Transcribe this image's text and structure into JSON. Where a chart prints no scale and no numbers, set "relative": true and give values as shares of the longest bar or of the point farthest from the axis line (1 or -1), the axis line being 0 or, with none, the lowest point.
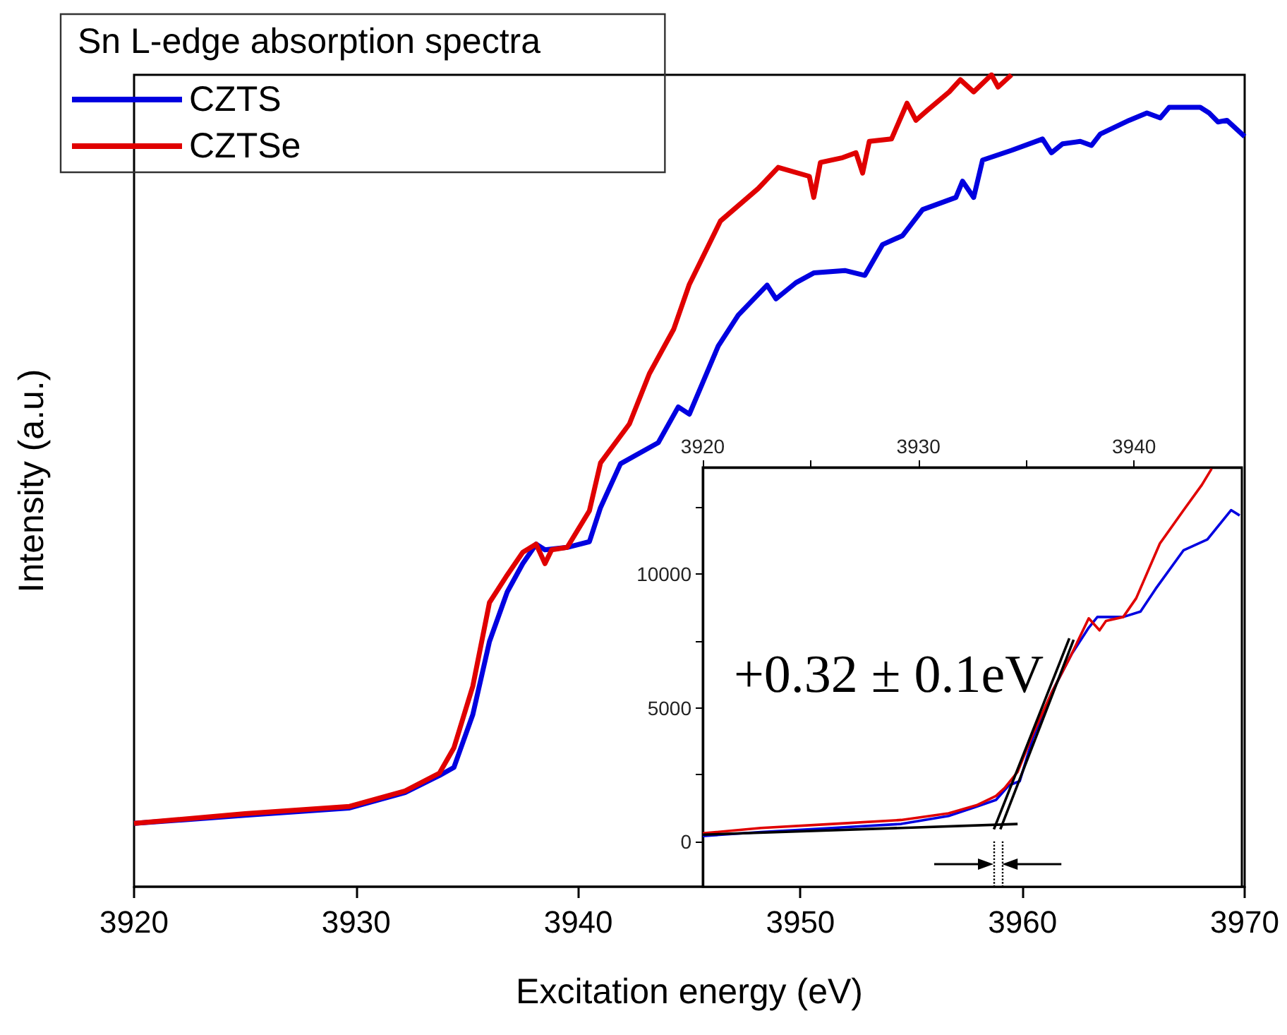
{
  "chart_data": [
    {
      "type": "line",
      "relative": true,
      "xlabel": "Excitation energy (eV)",
      "ylabel": "Intensity (a.u.)",
      "legend_title": "Sn L-edge absorption spectra",
      "legend": "top left",
      "grid": false,
      "marker": "none",
      "xlim": [
        3920,
        3970
      ],
      "xticks": [
        3920,
        3930,
        3940,
        3950,
        3960,
        3970
      ],
      "series": [
        {
          "name": "CZTS",
          "color": "#0000e0",
          "x": [
            3920,
            3925,
            3929.7,
            3932.2,
            3933.75,
            3934.4,
            3935.25,
            3936,
            3936.8,
            3937.5,
            3938.1,
            3938.5,
            3939.5,
            3940.5,
            3941,
            3941.9,
            3943.6,
            3944.5,
            3945,
            3946.3,
            3947.2,
            3948.5,
            3948.9,
            3949.8,
            3950.6,
            3952,
            3952.9,
            3953.7,
            3954.6,
            3955.5,
            3957,
            3957.3,
            3957.8,
            3958.2,
            3959.5,
            3960.9,
            3961.3,
            3961.8,
            3962.6,
            3963.1,
            3963.5,
            3964.8,
            3965.6,
            3966.2,
            3966.6,
            3968,
            3968.4,
            3968.8,
            3969.2,
            3970
          ],
          "values": [
            0.078,
            0.088,
            0.097,
            0.116,
            0.137,
            0.147,
            0.212,
            0.302,
            0.363,
            0.398,
            0.422,
            0.415,
            0.418,
            0.425,
            0.467,
            0.521,
            0.547,
            0.591,
            0.582,
            0.666,
            0.704,
            0.741,
            0.724,
            0.744,
            0.756,
            0.759,
            0.753,
            0.791,
            0.802,
            0.834,
            0.849,
            0.869,
            0.849,
            0.895,
            0.907,
            0.921,
            0.904,
            0.915,
            0.918,
            0.913,
            0.927,
            0.944,
            0.953,
            0.947,
            0.96,
            0.96,
            0.953,
            0.942,
            0.944,
            0.924
          ]
        },
        {
          "name": "CZTSe",
          "color": "#e00000",
          "x": [
            3920,
            3925,
            3929.7,
            3932.2,
            3933.75,
            3934.4,
            3935.25,
            3936,
            3936.8,
            3937.5,
            3938.1,
            3938.5,
            3938.8,
            3939.5,
            3940.5,
            3941,
            3942.3,
            3943.2,
            3944.3,
            3945,
            3946.4,
            3948.1,
            3949,
            3950.4,
            3950.6,
            3950.9,
            3951.9,
            3952.5,
            3952.8,
            3953.1,
            3954.1,
            3954.8,
            3955.2,
            3955.7,
            3956.7,
            3957.2,
            3957.8,
            3958.6,
            3958.9,
            3959.5
          ],
          "values": [
            0.078,
            0.09,
            0.099,
            0.118,
            0.14,
            0.171,
            0.247,
            0.35,
            0.384,
            0.412,
            0.422,
            0.398,
            0.415,
            0.418,
            0.463,
            0.522,
            0.57,
            0.632,
            0.687,
            0.742,
            0.82,
            0.86,
            0.886,
            0.875,
            0.849,
            0.892,
            0.898,
            0.904,
            0.879,
            0.918,
            0.921,
            0.965,
            0.944,
            0.956,
            0.979,
            0.994,
            0.979,
            1.0,
            0.985,
            1.0
          ]
        }
      ]
    },
    {
      "type": "line",
      "marker": "none",
      "grid": false,
      "xlim": [
        3920,
        3945
      ],
      "xticks": [
        3920,
        {
          "value": 3925,
          "label": null
        },
        3930,
        {
          "value": 3935,
          "label": null
        },
        3940
      ],
      "ylim": [
        -1700,
        14000
      ],
      "yticks": [
        0,
        {
          "value": 2500,
          "label": null
        },
        5000,
        {
          "value": 7500,
          "label": null
        },
        10000,
        {
          "value": 12500,
          "label": null
        }
      ],
      "annotations": [
        "+0.32 ± 0.1eV"
      ],
      "ref_lines": [
        {
          "axis": "x",
          "value": 3933.5,
          "line_style": "dotted",
          "color": "#000000"
        },
        {
          "axis": "x",
          "value": 3933.9,
          "line_style": "dotted",
          "color": "#000000"
        }
      ],
      "series": [
        {
          "color": "#0000e0",
          "x": [
            3920,
            3922.7,
            3926,
            3929.2,
            3931.4,
            3932.7,
            3933.6,
            3934.2,
            3934.7,
            3935.3,
            3936.2,
            3937.1,
            3937.9,
            3938.3,
            3939.5,
            3940.3,
            3941,
            3942.3,
            3943.4,
            3944.5,
            3944.9
          ],
          "values": [
            200,
            350,
            500,
            650,
            950,
            1300,
            1550,
            2100,
            2250,
            3850,
            5600,
            7000,
            8000,
            8400,
            8400,
            8600,
            9450,
            10900,
            11300,
            12400,
            12200
          ]
        },
        {
          "color": "#e00000",
          "x": [
            3920,
            3922.7,
            3926,
            3929.2,
            3931.4,
            3932.7,
            3933.6,
            3934,
            3934.6,
            3935.3,
            3936.2,
            3937.1,
            3937.9,
            3938.4,
            3938.7,
            3939.5,
            3940.1,
            3941.2,
            3942.3,
            3943.15,
            3943.6
          ],
          "values": [
            300,
            500,
            650,
            800,
            1050,
            1350,
            1700,
            2000,
            2600,
            4000,
            5600,
            7000,
            8350,
            7900,
            8250,
            8400,
            9100,
            11150,
            12400,
            13350,
            13950
          ]
        },
        {
          "type": "line",
          "color": "#000000",
          "x": [
            3920,
            3934.6
          ],
          "values": [
            250,
            650
          ]
        },
        {
          "type": "line",
          "color": "#000000",
          "x": [
            3933.5,
            3937
          ],
          "values": [
            450,
            7600
          ]
        },
        {
          "type": "line",
          "color": "#000000",
          "x": [
            3933.8,
            3937.2
          ],
          "values": [
            450,
            7550
          ]
        }
      ]
    }
  ]
}
